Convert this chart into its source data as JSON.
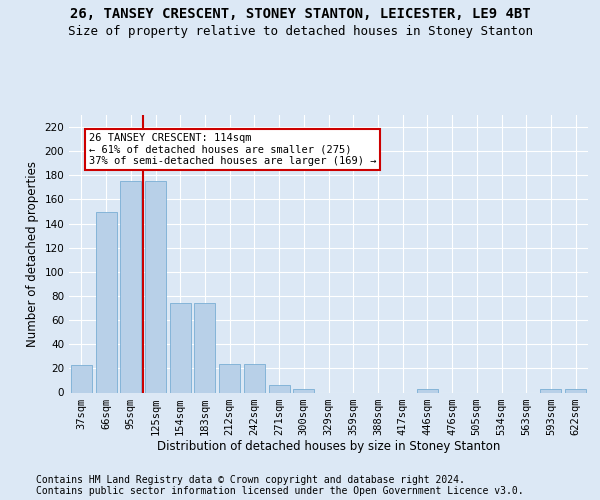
{
  "title1": "26, TANSEY CRESCENT, STONEY STANTON, LEICESTER, LE9 4BT",
  "title2": "Size of property relative to detached houses in Stoney Stanton",
  "xlabel": "Distribution of detached houses by size in Stoney Stanton",
  "ylabel": "Number of detached properties",
  "categories": [
    "37sqm",
    "66sqm",
    "95sqm",
    "125sqm",
    "154sqm",
    "183sqm",
    "212sqm",
    "242sqm",
    "271sqm",
    "300sqm",
    "329sqm",
    "359sqm",
    "388sqm",
    "417sqm",
    "446sqm",
    "476sqm",
    "505sqm",
    "534sqm",
    "563sqm",
    "593sqm",
    "622sqm"
  ],
  "values": [
    23,
    150,
    175,
    175,
    74,
    74,
    24,
    24,
    6,
    3,
    0,
    0,
    0,
    0,
    3,
    0,
    0,
    0,
    0,
    3,
    3
  ],
  "bar_color": "#b8d0e8",
  "bar_edge_color": "#7aaed4",
  "highlight_line_color": "#cc0000",
  "annotation_text": "26 TANSEY CRESCENT: 114sqm\n← 61% of detached houses are smaller (275)\n37% of semi-detached houses are larger (169) →",
  "annotation_box_color": "#ffffff",
  "annotation_box_edge": "#cc0000",
  "ylim": [
    0,
    230
  ],
  "yticks": [
    0,
    20,
    40,
    60,
    80,
    100,
    120,
    140,
    160,
    180,
    200,
    220
  ],
  "footer1": "Contains HM Land Registry data © Crown copyright and database right 2024.",
  "footer2": "Contains public sector information licensed under the Open Government Licence v3.0.",
  "bg_color": "#dce8f5",
  "title1_fontsize": 10,
  "title2_fontsize": 9,
  "ylabel_fontsize": 8.5,
  "xlabel_fontsize": 8.5,
  "tick_fontsize": 7.5,
  "footer_fontsize": 7,
  "annot_fontsize": 7.5
}
